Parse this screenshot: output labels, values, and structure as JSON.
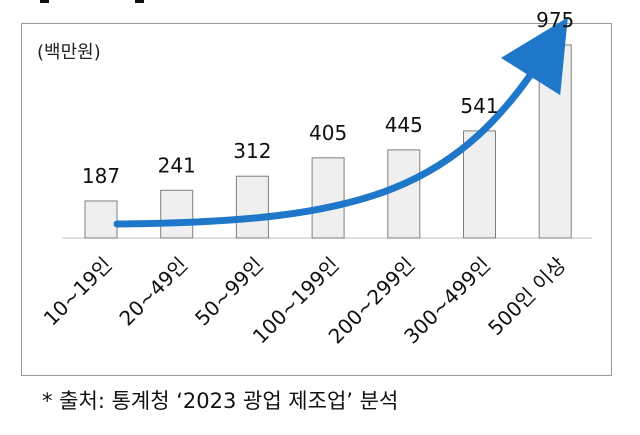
{
  "unit_label": "(백만원)",
  "source_note": "* 출처: 통계청 ‘2023 광업 제조업’ 분석",
  "colors": {
    "bar_fill": "#efefef",
    "bar_stroke": "#7f7f7f",
    "arrow": "#1f77c9",
    "axis": "#bfbfbf"
  },
  "chart_data": {
    "type": "bar",
    "title": "",
    "xlabel": "",
    "ylabel": "(백만원)",
    "categories": [
      "10~19인",
      "20~49인",
      "50~99인",
      "100~199인",
      "200~299인",
      "300~499인",
      "500인 이상"
    ],
    "values": [
      187,
      241,
      312,
      405,
      445,
      541,
      975
    ],
    "ylim": [
      0,
      1000
    ],
    "grid": false,
    "legend": "none",
    "annotation": "upward curved arrow indicating increase"
  }
}
